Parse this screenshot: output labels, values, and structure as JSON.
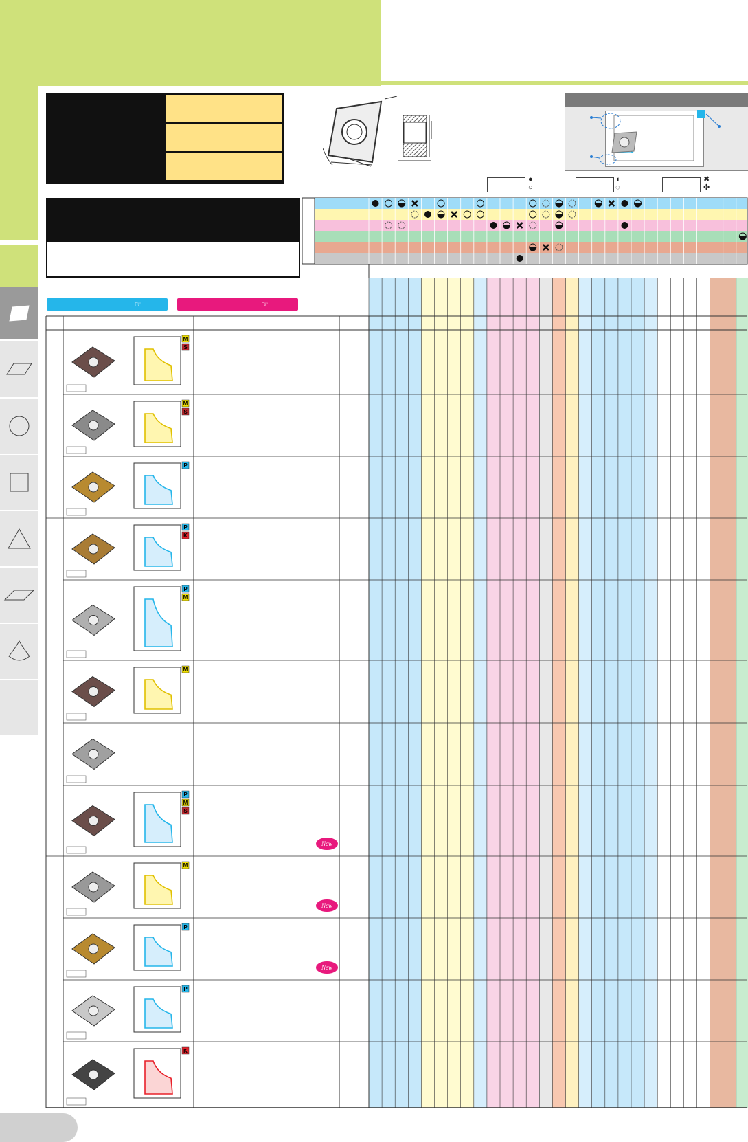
{
  "legend": {
    "symbols": [
      "●",
      "○",
      "◖",
      "◌",
      "✖",
      "✣"
    ]
  },
  "grades": [
    {
      "chips": [
        "M",
        "S"
      ]
    },
    {
      "chips": [
        "M",
        "S"
      ]
    },
    {
      "chips": [
        "P"
      ]
    },
    {
      "chips": [
        "P",
        "K"
      ]
    },
    {
      "chips": [
        "P",
        "M"
      ]
    },
    {
      "chips": [
        "M"
      ]
    },
    {
      "chips": []
    },
    {
      "chips": [
        "P",
        "M",
        "S"
      ],
      "badge": "New"
    },
    {
      "chips": [
        "M"
      ],
      "badge": "New"
    },
    {
      "chips": [
        "P"
      ],
      "badge": "New"
    },
    {
      "chips": [
        "P"
      ]
    },
    {
      "chips": [
        "K"
      ]
    }
  ],
  "colors": {
    "green": "#cfe17a",
    "yellow": "#ffe287",
    "P": "#25b6ea",
    "M": "#f0e000",
    "K": "#e8212a",
    "S": "#c0272d"
  }
}
